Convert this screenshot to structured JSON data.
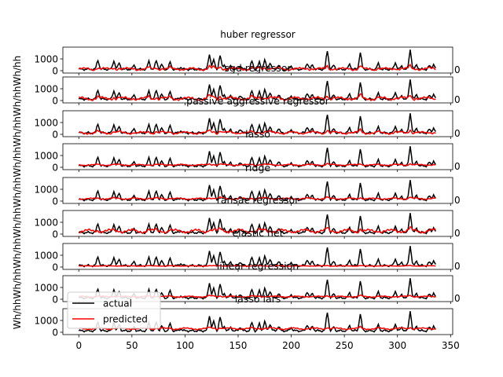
{
  "chart_data": {
    "type": "line",
    "ylabel": "Wh/hhWh/hhWh/hhWh/hhWh/hhWh/hhWh/hhWh/hhWh/hh",
    "xlim": [
      -15,
      352
    ],
    "x_ticks": [
      0,
      50,
      100,
      150,
      200,
      250,
      300,
      350
    ],
    "y_ticks": [
      0,
      1000
    ],
    "ylim": [
      -200,
      2000
    ],
    "legend": {
      "placement": "lower-left",
      "entries": [
        {
          "name": "actual",
          "color": "#000000"
        },
        {
          "name": "predicted",
          "color": "#ff0000"
        }
      ]
    },
    "overlap_tick_label": "0",
    "actual_series": {
      "name": "actual",
      "color": "#000000",
      "baseline": 120,
      "peaks": [
        [
          18,
          900
        ],
        [
          33,
          850
        ],
        [
          38,
          650
        ],
        [
          52,
          450
        ],
        [
          66,
          800
        ],
        [
          73,
          850
        ],
        [
          78,
          500
        ],
        [
          86,
          700
        ],
        [
          96,
          300
        ],
        [
          123,
          1400
        ],
        [
          127,
          900
        ],
        [
          133,
          1300
        ],
        [
          137,
          500
        ],
        [
          143,
          400
        ],
        [
          152,
          450
        ],
        [
          163,
          800
        ],
        [
          170,
          700
        ],
        [
          175,
          900
        ],
        [
          180,
          700
        ],
        [
          188,
          500
        ],
        [
          200,
          400
        ],
        [
          215,
          650
        ],
        [
          220,
          500
        ],
        [
          234,
          1700
        ],
        [
          240,
          450
        ],
        [
          255,
          550
        ],
        [
          265,
          1550
        ],
        [
          282,
          600
        ],
        [
          298,
          700
        ],
        [
          304,
          400
        ],
        [
          312,
          1800
        ],
        [
          318,
          500
        ],
        [
          330,
          400
        ],
        [
          334,
          550
        ]
      ]
    },
    "panels": [
      {
        "title": "huber regressor",
        "pred_base": 140,
        "pred_amp": 0.3,
        "pred_wiggle": 90
      },
      {
        "title": "sgd regressor",
        "pred_base": 160,
        "pred_amp": 0.35,
        "pred_wiggle": 110
      },
      {
        "title": "passive aggressive regressor",
        "pred_base": 120,
        "pred_amp": 0.3,
        "pred_wiggle": 80
      },
      {
        "title": "lasso",
        "pred_base": 200,
        "pred_amp": 0.12,
        "pred_wiggle": 40
      },
      {
        "title": "ridge",
        "pred_base": 200,
        "pred_amp": 0.14,
        "pred_wiggle": 45
      },
      {
        "title": "ransac regressor",
        "pred_base": 250,
        "pred_amp": 0.25,
        "pred_wiggle": 120
      },
      {
        "title": "elastic net",
        "pred_base": 90,
        "pred_amp": 0.04,
        "pred_wiggle": 15
      },
      {
        "title": "linear regression",
        "pred_base": 220,
        "pred_amp": 0.12,
        "pred_wiggle": 40
      },
      {
        "title": "lasso lars",
        "pred_base": 300,
        "pred_amp": 0.15,
        "pred_wiggle": 60
      },
      {
        "title": "",
        "pred_base": 210,
        "pred_amp": 0.12,
        "pred_wiggle": 40
      }
    ]
  }
}
